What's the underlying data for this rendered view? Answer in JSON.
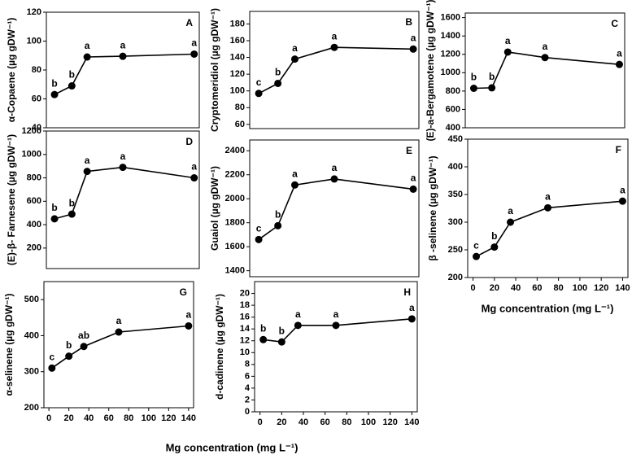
{
  "chart_data": [
    {
      "type": "line",
      "label": "A",
      "ylabel": "α-Copaene (µg gDW⁻¹)",
      "x": [
        3,
        20,
        35,
        70,
        140
      ],
      "values": [
        63,
        69,
        89,
        89.5,
        91
      ],
      "letters": [
        "b",
        "b",
        "a",
        "a",
        "a"
      ],
      "ylim": [
        40,
        120
      ],
      "yticks": [
        40,
        60,
        80,
        100,
        120
      ],
      "xlim": [
        -5,
        145
      ],
      "color": "#000000"
    },
    {
      "type": "line",
      "label": "B",
      "ylabel": "Cryptomeridiol  (µg gDW⁻¹)",
      "x": [
        3,
        20,
        35,
        70,
        140
      ],
      "values": [
        97,
        109,
        138,
        152,
        150
      ],
      "letters": [
        "c",
        "b",
        "a",
        "a",
        "a"
      ],
      "ylim": [
        55,
        195
      ],
      "yticks": [
        60,
        80,
        100,
        120,
        140,
        160,
        180
      ],
      "xlim": [
        -5,
        145
      ],
      "color": "#000000"
    },
    {
      "type": "line",
      "label": "C",
      "ylabel": "(E)-a-Bergamotene (µg gDW⁻¹)",
      "x": [
        3,
        20,
        35,
        70,
        140
      ],
      "values": [
        830,
        835,
        1225,
        1165,
        1090
      ],
      "letters": [
        "b",
        "b",
        "a",
        "a",
        "a"
      ],
      "ylim": [
        400,
        1650
      ],
      "yticks": [
        400,
        600,
        800,
        1000,
        1200,
        1400,
        1600
      ],
      "xlim": [
        -5,
        145
      ],
      "color": "#000000"
    },
    {
      "type": "line",
      "label": "D",
      "ylabel": "(E)-β- Farnesene (µg gDW⁻¹)",
      "x": [
        3,
        20,
        35,
        70,
        140
      ],
      "values": [
        450,
        490,
        855,
        890,
        800
      ],
      "letters": [
        "b",
        "b",
        "a",
        "a",
        "a"
      ],
      "ylim": [
        25,
        1200
      ],
      "yticks": [
        200,
        400,
        600,
        800,
        1000,
        1200
      ],
      "xlim": [
        -5,
        145
      ],
      "color": "#000000"
    },
    {
      "type": "line",
      "label": "E",
      "ylabel": "Guaiol (µg gDW⁻¹)",
      "x": [
        3,
        20,
        35,
        70,
        140
      ],
      "values": [
        1660,
        1775,
        2115,
        2165,
        2080
      ],
      "letters": [
        "c",
        "b",
        "a",
        "a",
        "a"
      ],
      "ylim": [
        1350,
        2490
      ],
      "yticks": [
        1400,
        1600,
        1800,
        2000,
        2200,
        2400
      ],
      "xlim": [
        -5,
        145
      ],
      "color": "#000000"
    },
    {
      "type": "line",
      "label": "F",
      "ylabel": "β -selinene (µg gDW⁻¹)",
      "x": [
        3,
        20,
        35,
        70,
        140
      ],
      "values": [
        238,
        255,
        300,
        326,
        338
      ],
      "letters": [
        "c",
        "b",
        "a",
        "a",
        "a"
      ],
      "ylim": [
        200,
        450
      ],
      "yticks": [
        200,
        250,
        300,
        350,
        400,
        450
      ],
      "xlim": [
        -5,
        145
      ],
      "xticks": [
        0,
        20,
        40,
        60,
        80,
        100,
        120,
        140
      ],
      "xlabel": "Mg concentration (mg L⁻¹)",
      "color": "#000000"
    },
    {
      "type": "line",
      "label": "G",
      "ylabel": "α-selinene (µg gDW⁻¹)",
      "x": [
        3,
        20,
        35,
        70,
        140
      ],
      "values": [
        310,
        343,
        370,
        410,
        427
      ],
      "letters": [
        "c",
        "b",
        "ab",
        "a",
        "a"
      ],
      "ylim": [
        200,
        550
      ],
      "yticks": [
        200,
        300,
        400,
        500
      ],
      "xlim": [
        -5,
        145
      ],
      "xticks": [
        0,
        20,
        40,
        60,
        80,
        100,
        120,
        140
      ],
      "xlabel": "Mg concentration (mg L⁻¹)",
      "color": "#000000"
    },
    {
      "type": "line",
      "label": "H",
      "ylabel": "d-cadinene (µg gDW⁻¹)",
      "x": [
        3,
        20,
        35,
        70,
        140
      ],
      "values": [
        12.2,
        11.8,
        14.6,
        14.6,
        15.7
      ],
      "letters": [
        "b",
        "b",
        "a",
        "a",
        "a"
      ],
      "ylim": [
        0,
        22
      ],
      "yticks": [
        0,
        2,
        4,
        6,
        8,
        10,
        12,
        14,
        16,
        18,
        20
      ],
      "xlim": [
        -5,
        145
      ],
      "xticks": [
        0,
        20,
        40,
        60,
        80,
        100,
        120,
        140
      ],
      "color": "#000000"
    }
  ]
}
